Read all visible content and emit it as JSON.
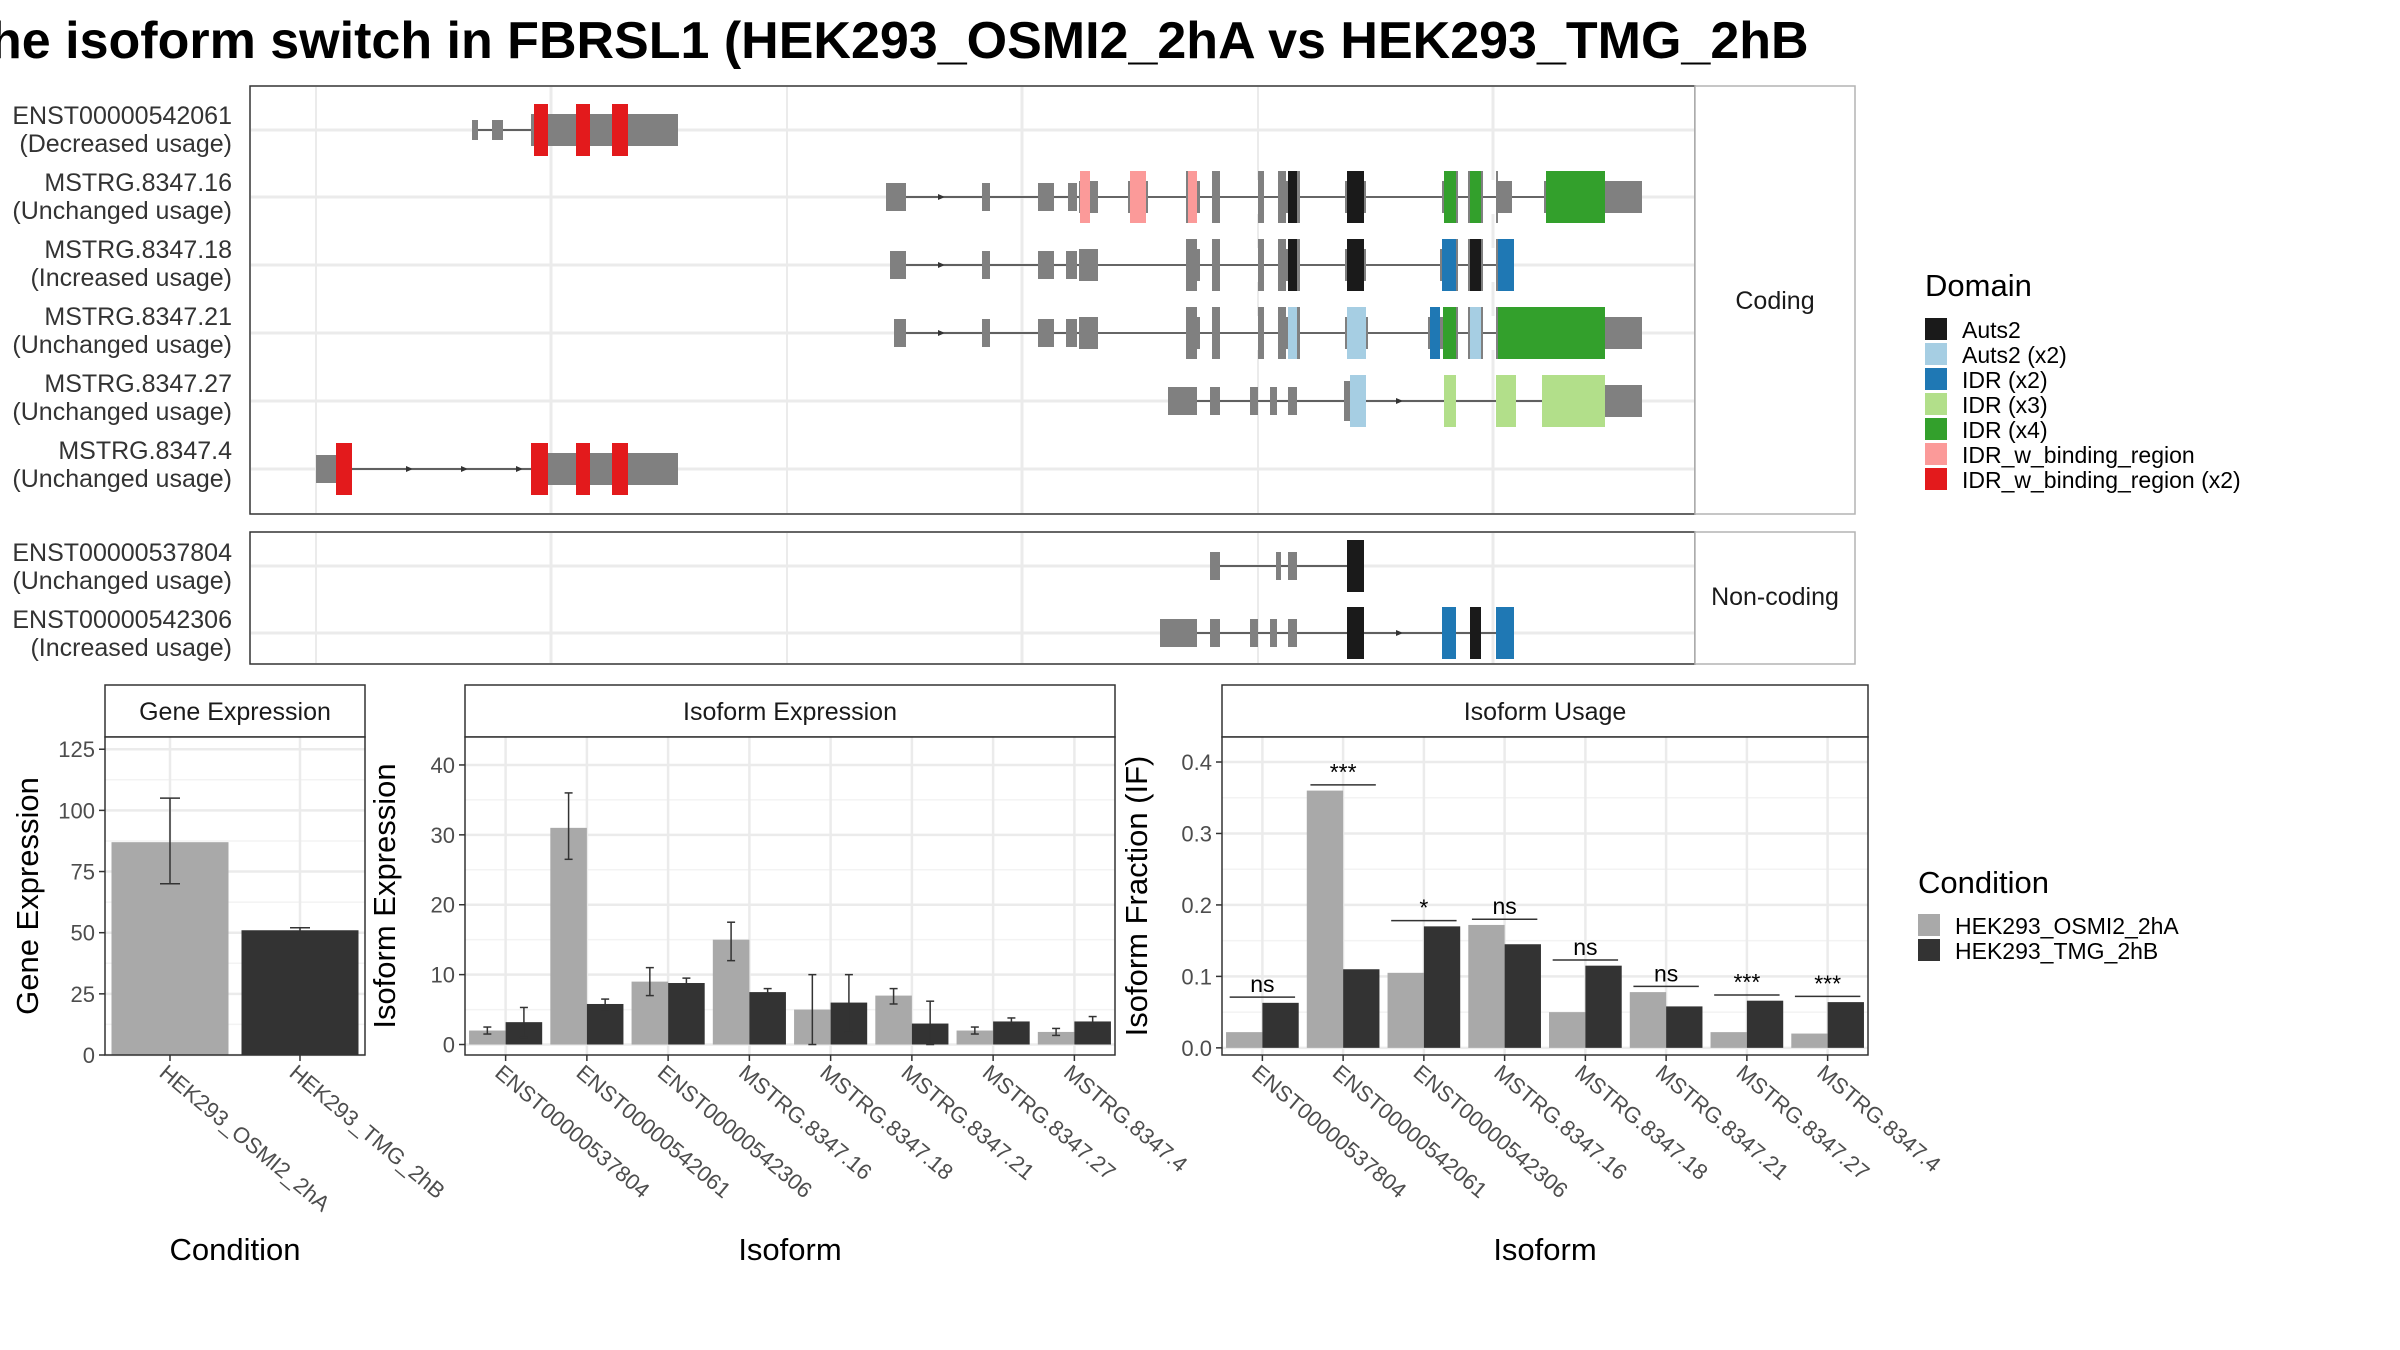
{
  "title": "he isoform switch in FBRSL1 (HEK293_OSMI2_2hA vs HEK293_TMG_2hB",
  "structure": {
    "groups": [
      {
        "name": "Coding",
        "rows": [
          {
            "id": "ENST00000542061",
            "usage": "(Decreased usage)"
          },
          {
            "id": "MSTRG.8347.16",
            "usage": "(Unchanged usage)"
          },
          {
            "id": "MSTRG.8347.18",
            "usage": "(Increased usage)"
          },
          {
            "id": "MSTRG.8347.21",
            "usage": "(Unchanged usage)"
          },
          {
            "id": "MSTRG.8347.27",
            "usage": "(Unchanged usage)"
          },
          {
            "id": "MSTRG.8347.4",
            "usage": "(Unchanged usage)"
          }
        ]
      },
      {
        "name": "Non-coding",
        "rows": [
          {
            "id": "ENST00000537804",
            "usage": "(Unchanged usage)"
          },
          {
            "id": "ENST00000542306",
            "usage": "(Increased usage)"
          }
        ]
      }
    ]
  },
  "domain_legend": {
    "title": "Domain",
    "items": [
      {
        "label": "Auts2",
        "color": "#1a1a1a"
      },
      {
        "label": "Auts2 (x2)",
        "color": "#a6cee3"
      },
      {
        "label": "IDR (x2)",
        "color": "#1f78b4"
      },
      {
        "label": "IDR (x3)",
        "color": "#b2df8a"
      },
      {
        "label": "IDR (x4)",
        "color": "#33a02c"
      },
      {
        "label": "IDR_w_binding_region",
        "color": "#fb9a99"
      },
      {
        "label": "IDR_w_binding_region (x2)",
        "color": "#e31a1c"
      }
    ]
  },
  "condition_legend": {
    "title": "Condition",
    "items": [
      {
        "label": "HEK293_OSMI2_2hA",
        "color": "#a9a9a9"
      },
      {
        "label": "HEK293_TMG_2hB",
        "color": "#333333"
      }
    ]
  },
  "chart_data": [
    {
      "type": "bar",
      "title": "Gene Expression",
      "xlabel": "Condition",
      "ylabel": "Gene Expression",
      "categories": [
        "HEK293_OSMI2_2hA",
        "HEK293_TMG_2hB"
      ],
      "values": [
        87,
        51
      ],
      "errors": [
        [
          70,
          105
        ],
        [
          50,
          52
        ]
      ],
      "ylim": [
        0,
        130
      ],
      "yticks": [
        0,
        25,
        50,
        75,
        100,
        125
      ]
    },
    {
      "type": "bar",
      "title": "Isoform Expression",
      "xlabel": "Isoform",
      "ylabel": "Isoform Expression",
      "categories": [
        "ENST00000537804",
        "ENST00000542061",
        "ENST00000542306",
        "MSTRG.8347.16",
        "MSTRG.8347.18",
        "MSTRG.8347.21",
        "MSTRG.8347.27",
        "MSTRG.8347.4"
      ],
      "series": [
        {
          "name": "HEK293_OSMI2_2hA",
          "values": [
            2.0,
            31.0,
            9.0,
            15.0,
            5.0,
            7.0,
            2.0,
            1.8
          ],
          "errors": [
            [
              1.5,
              2.5
            ],
            [
              26.5,
              36.0
            ],
            [
              7.0,
              11.0
            ],
            [
              12.0,
              17.5
            ],
            [
              0,
              10.0
            ],
            [
              5.8,
              8.0
            ],
            [
              1.5,
              2.5
            ],
            [
              1.3,
              2.3
            ]
          ]
        },
        {
          "name": "HEK293_TMG_2hB",
          "values": [
            3.2,
            5.8,
            8.8,
            7.5,
            6.0,
            3.0,
            3.3,
            3.3
          ],
          "errors": [
            [
              1.0,
              5.3
            ],
            [
              5.0,
              6.5
            ],
            [
              8.0,
              9.5
            ],
            [
              7.0,
              8.0
            ],
            [
              1.8,
              10.0
            ],
            [
              0,
              6.2
            ],
            [
              2.8,
              3.8
            ],
            [
              2.5,
              4.0
            ]
          ]
        }
      ],
      "ylim": [
        -1.5,
        44
      ],
      "yticks": [
        0,
        10,
        20,
        30,
        40
      ]
    },
    {
      "type": "bar",
      "title": "Isoform Usage",
      "xlabel": "Isoform",
      "ylabel": "Isoform Fraction (IF)",
      "categories": [
        "ENST00000537804",
        "ENST00000542061",
        "ENST00000542306",
        "MSTRG.8347.16",
        "MSTRG.8347.18",
        "MSTRG.8347.21",
        "MSTRG.8347.27",
        "MSTRG.8347.4"
      ],
      "series": [
        {
          "name": "HEK293_OSMI2_2hA",
          "values": [
            0.022,
            0.36,
            0.105,
            0.172,
            0.05,
            0.078,
            0.022,
            0.02
          ]
        },
        {
          "name": "HEK293_TMG_2hB",
          "values": [
            0.063,
            0.11,
            0.17,
            0.145,
            0.115,
            0.058,
            0.066,
            0.064
          ]
        }
      ],
      "significance": [
        "ns",
        "***",
        "*",
        "ns",
        "ns",
        "ns",
        "***",
        "***"
      ],
      "ylim": [
        -0.01,
        0.435
      ],
      "yticks": [
        0.0,
        0.1,
        0.2,
        0.3,
        0.4
      ],
      "ytick_labels": [
        "0.0",
        "0.1",
        "0.2",
        "0.3",
        "0.4"
      ]
    }
  ]
}
